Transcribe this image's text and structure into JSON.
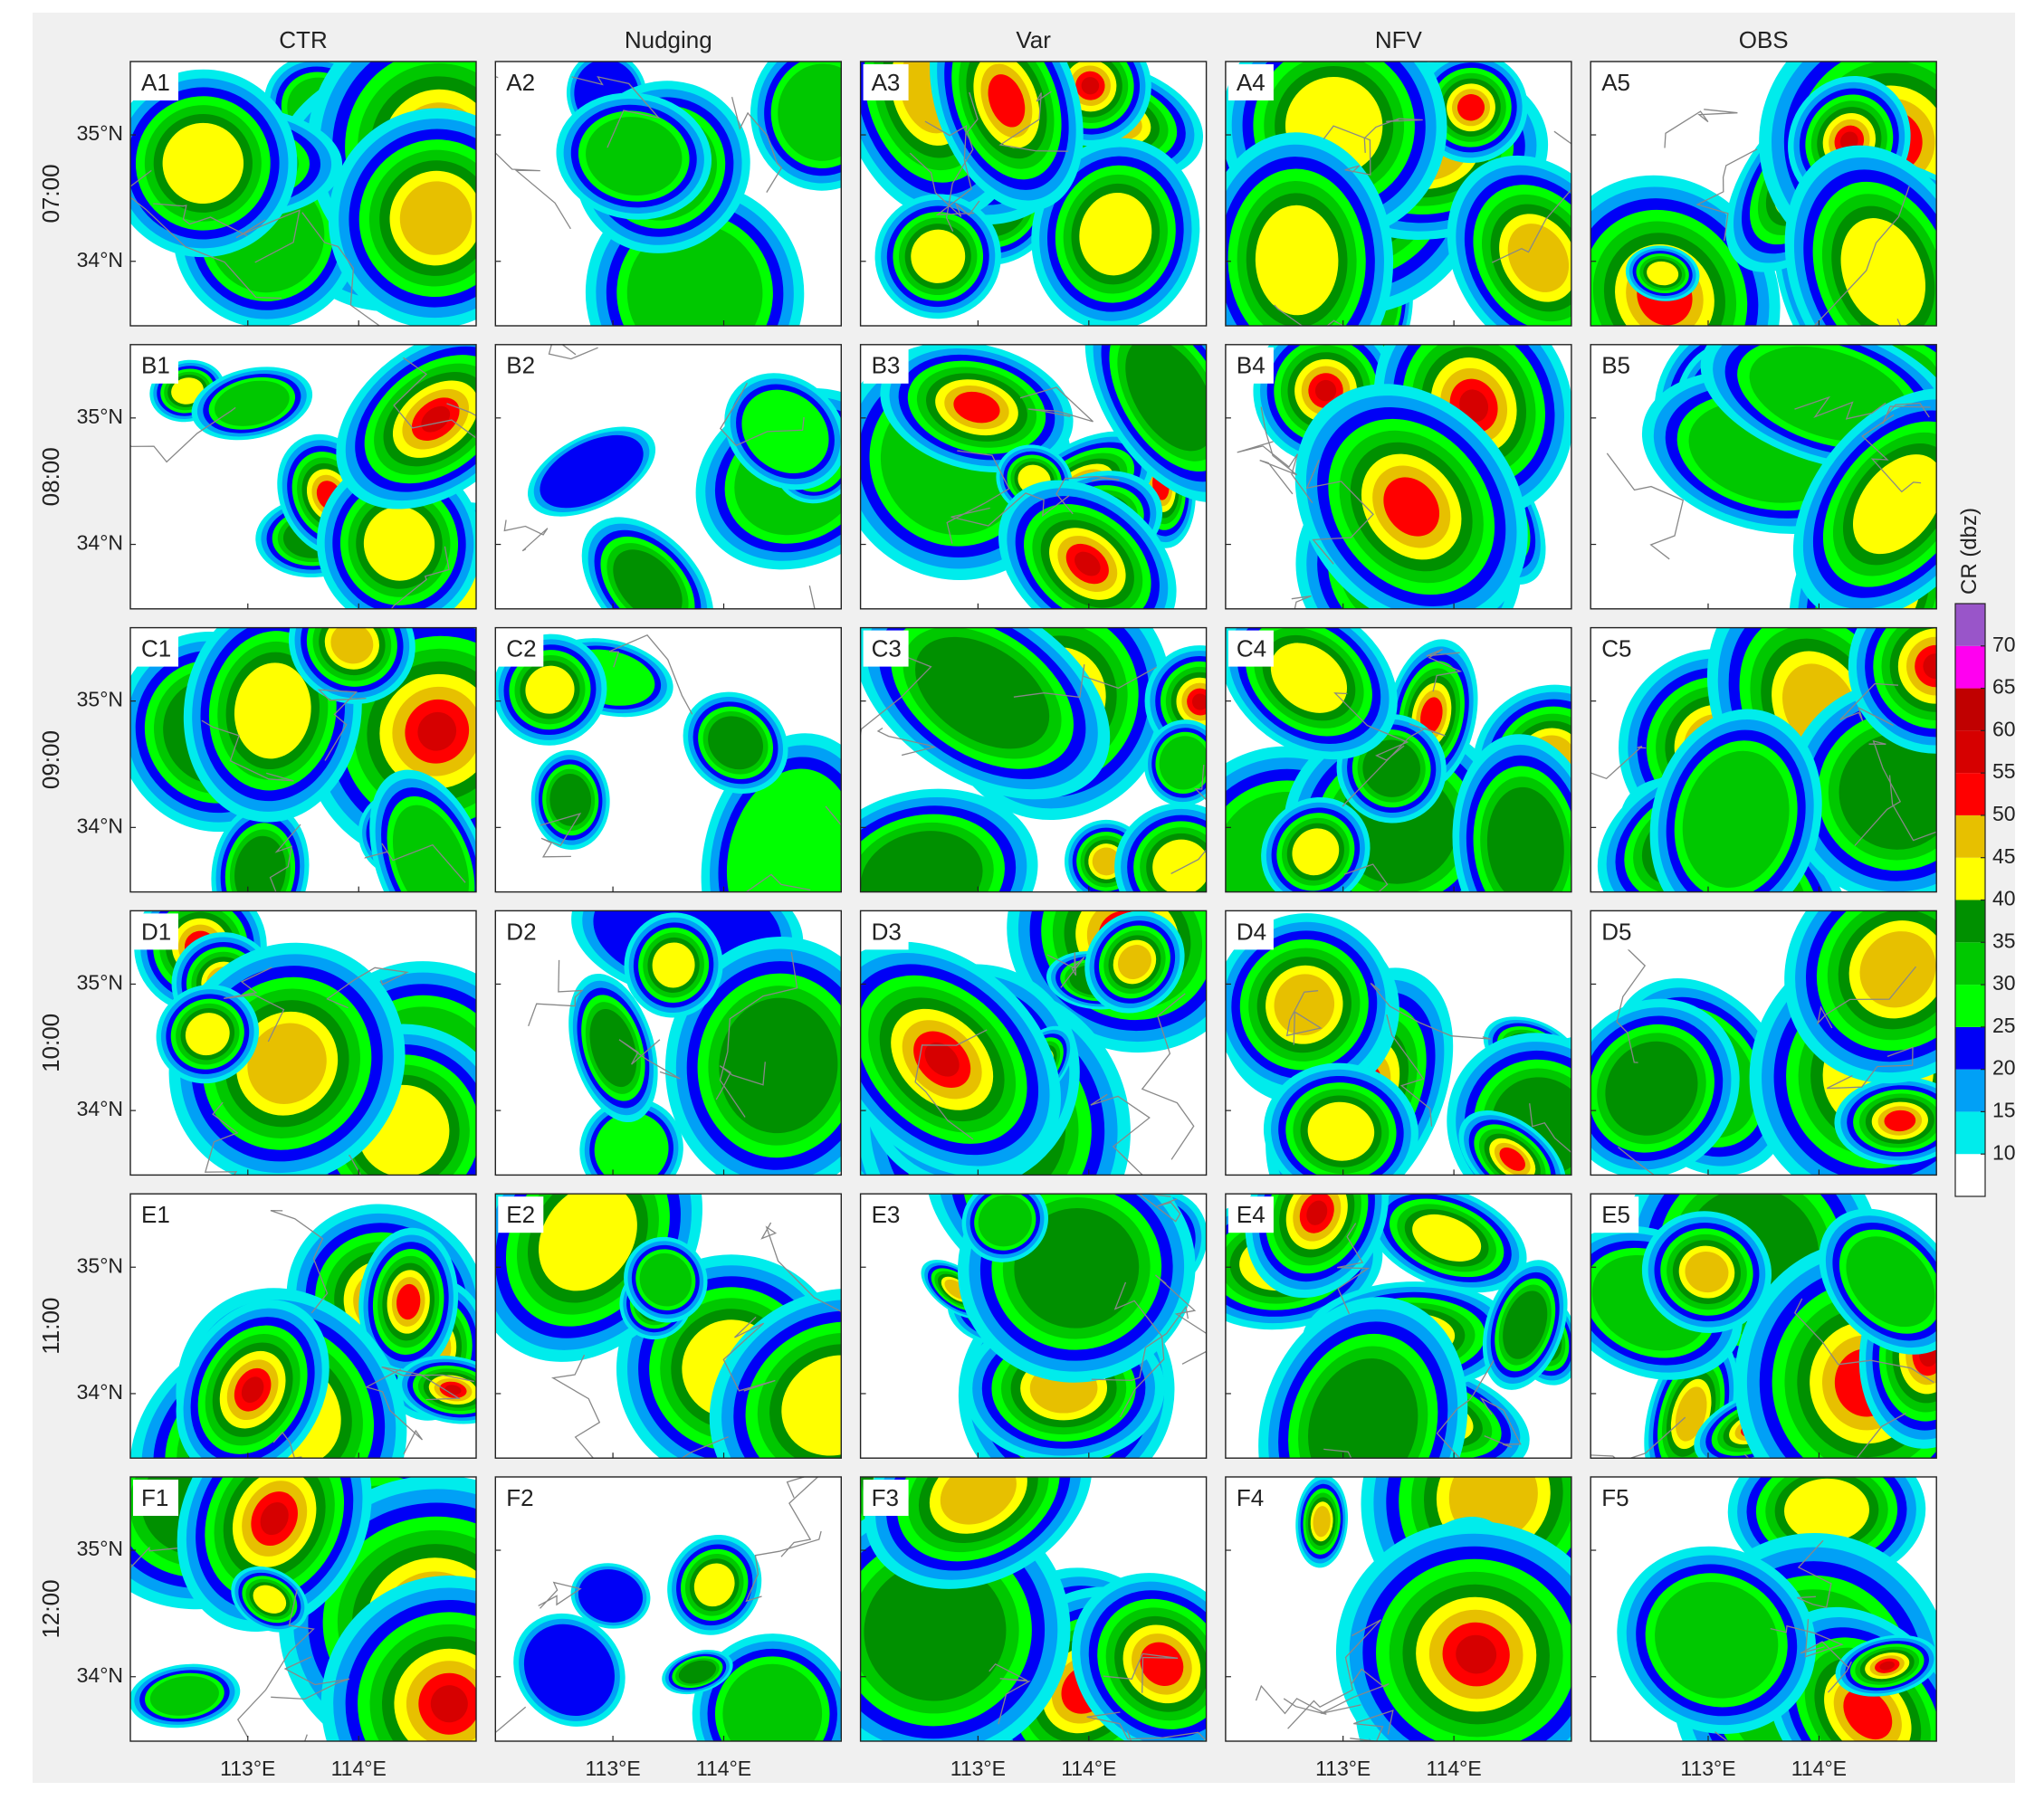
{
  "figure": {
    "columns": [
      "CTR",
      "Nudging",
      "Var",
      "NFV",
      "OBS"
    ],
    "rows": [
      {
        "time": "07:00",
        "panels": [
          "A1",
          "A2",
          "A3",
          "A4",
          "A5"
        ]
      },
      {
        "time": "08:00",
        "panels": [
          "B1",
          "B2",
          "B3",
          "B4",
          "B5"
        ]
      },
      {
        "time": "09:00",
        "panels": [
          "C1",
          "C2",
          "C3",
          "C4",
          "C5"
        ]
      },
      {
        "time": "10:00",
        "panels": [
          "D1",
          "D2",
          "D3",
          "D4",
          "D5"
        ]
      },
      {
        "time": "11:00",
        "panels": [
          "E1",
          "E2",
          "E3",
          "E4",
          "E5"
        ]
      },
      {
        "time": "12:00",
        "panels": [
          "F1",
          "F2",
          "F3",
          "F4",
          "F5"
        ]
      }
    ],
    "lonlim": [
      111.94,
      115.06
    ],
    "latlim": [
      33.49,
      35.58
    ],
    "lonticks": [
      {
        "value": 113,
        "label": "113°E"
      },
      {
        "value": 114,
        "label": "114°E"
      }
    ],
    "latticks": [
      {
        "value": 35,
        "label": "35°N"
      },
      {
        "value": 34,
        "label": "34°N"
      }
    ],
    "colorbar": {
      "label": "CR (dbz)",
      "levels": [
        5,
        10,
        15,
        20,
        25,
        30,
        35,
        40,
        45,
        50,
        55,
        60,
        65,
        70,
        75
      ],
      "colors": [
        "#ffffff",
        "#00ecec",
        "#01a0f6",
        "#0000f6",
        "#00ff00",
        "#00c800",
        "#009000",
        "#ffff00",
        "#e7c000",
        "#ff0000",
        "#d60000",
        "#c00000",
        "#ff00f0",
        "#9955c9"
      ],
      "ticks": [
        10,
        15,
        20,
        25,
        30,
        35,
        40,
        45,
        50,
        55,
        60,
        65,
        70
      ]
    }
  }
}
